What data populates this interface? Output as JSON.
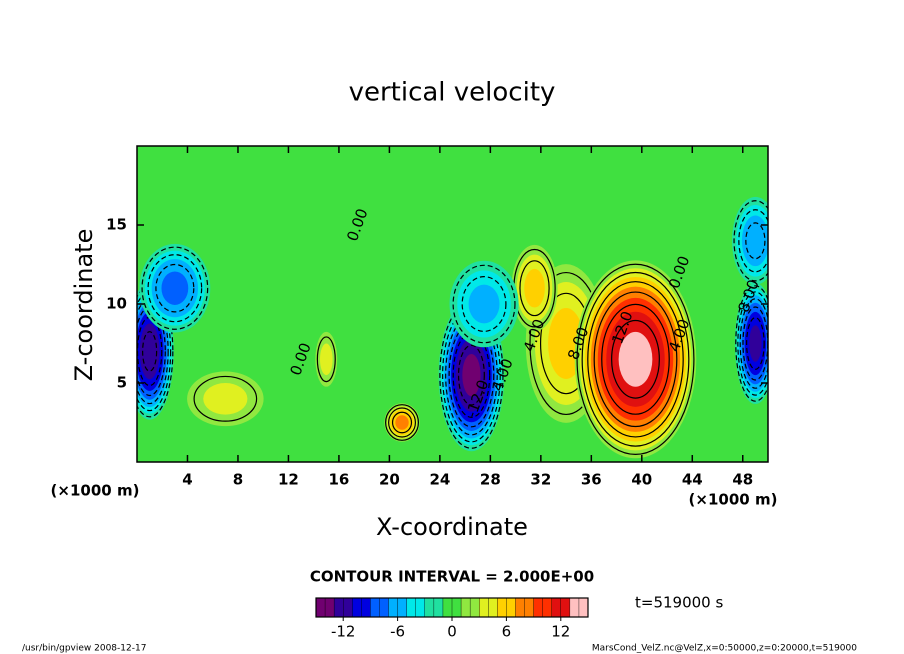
{
  "chart_data": {
    "type": "contour",
    "title": "vertical velocity",
    "x_label": "X-coordinate",
    "y_label": "Z-coordinate",
    "x_unit_left": "(×1000 m)",
    "x_unit_right": "(×1000 m)",
    "xlim": [
      0,
      50
    ],
    "xticks": [
      4,
      8,
      12,
      16,
      20,
      24,
      28,
      32,
      36,
      40,
      44,
      48
    ],
    "ylim": [
      0,
      20
    ],
    "yticks": [
      5,
      10,
      15
    ],
    "contour_interval": 2,
    "contour_interval_text": "CONTOUR INTERVAL = 2.000E+00",
    "time_text": "t=519000 s",
    "clim": [
      -15,
      15
    ],
    "cticks": [
      -12,
      -6,
      0,
      6,
      12
    ],
    "colormap": [
      "#700070",
      "#30009a",
      "#0000e0",
      "#0060ff",
      "#00b0ff",
      "#00e8e8",
      "#20e0a0",
      "#40e040",
      "#90e840",
      "#e0f020",
      "#ffd000",
      "#ff8000",
      "#ff3000",
      "#e01010",
      "#ffc0c0"
    ],
    "features": [
      {
        "x": 34,
        "z": 7.5,
        "rx": 3.5,
        "rz": 5.5,
        "value": 6
      },
      {
        "x": 39.5,
        "z": 6.5,
        "rx": 5,
        "rz": 6.5,
        "value": 14
      },
      {
        "x": 31.5,
        "z": 11,
        "rx": 2,
        "rz": 3,
        "value": 6
      },
      {
        "x": 7,
        "z": 4,
        "rx": 3.5,
        "rz": 2,
        "value": 4
      },
      {
        "x": 21,
        "z": 2.5,
        "rx": 1.5,
        "rz": 1.3,
        "value": 8
      },
      {
        "x": 15,
        "z": 6.5,
        "rx": 1,
        "rz": 2,
        "value": 4
      },
      {
        "x": 26.5,
        "z": 5.5,
        "rx": 2.7,
        "rz": 5,
        "value": -14
      },
      {
        "x": 1,
        "z": 7,
        "rx": 2,
        "rz": 4.5,
        "value": -13
      },
      {
        "x": 49,
        "z": 7.5,
        "rx": 1.7,
        "rz": 4,
        "value": -12
      },
      {
        "x": 3,
        "z": 11,
        "rx": 3,
        "rz": 3,
        "value": -8
      },
      {
        "x": 49,
        "z": 14,
        "rx": 2,
        "rz": 3,
        "value": -7
      },
      {
        "x": 27.5,
        "z": 10,
        "rx": 3,
        "rz": 3,
        "value": -6
      }
    ],
    "contour_labels": [
      {
        "text": "12.0",
        "x": 38.5,
        "z": 8.5
      },
      {
        "text": "8.00",
        "x": 35,
        "z": 7.5
      },
      {
        "text": "4.00",
        "x": 31.5,
        "z": 8
      },
      {
        "text": "4.00",
        "x": 43,
        "z": 8
      },
      {
        "text": "4.00",
        "x": 29,
        "z": 5.5
      },
      {
        "text": "-12.0",
        "x": 27,
        "z": 4
      },
      {
        "text": "0.00",
        "x": 43,
        "z": 12
      },
      {
        "text": "0.00",
        "x": 13,
        "z": 6.5
      },
      {
        "text": "0.00",
        "x": 17.5,
        "z": 15
      },
      {
        "text": "8.00",
        "x": 48.5,
        "z": 10.5
      }
    ],
    "footer_left": "/usr/bin/gpview   2008-12-17",
    "footer_right": "MarsCond_VelZ.nc@VelZ,x=0:50000,z=0:20000,t=519000"
  }
}
